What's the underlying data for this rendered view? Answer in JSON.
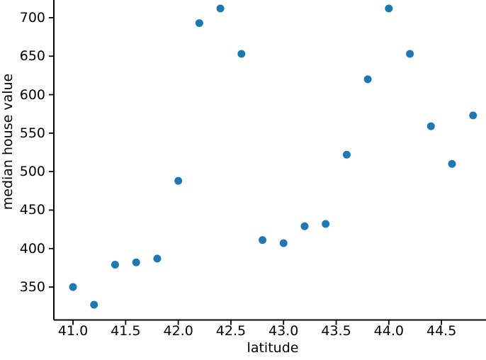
{
  "chart_data": {
    "type": "scatter",
    "xlabel": "latitude",
    "ylabel": "median house value",
    "x": [
      41.0,
      41.2,
      41.4,
      41.6,
      41.8,
      42.0,
      42.2,
      42.4,
      42.6,
      42.8,
      43.0,
      43.2,
      43.4,
      43.6,
      43.8,
      44.0,
      44.2,
      44.4,
      44.6,
      44.8
    ],
    "y": [
      350,
      327,
      379,
      382,
      387,
      488,
      693,
      712,
      653,
      411,
      407,
      429,
      432,
      522,
      620,
      712,
      653,
      559,
      510,
      573
    ],
    "x_tick_labels": [
      "41.0",
      "41.5",
      "42.0",
      "42.5",
      "43.0",
      "43.5",
      "44.0",
      "44.5"
    ],
    "x_tick_values": [
      41.0,
      41.5,
      42.0,
      42.5,
      43.0,
      43.5,
      44.0,
      44.5
    ],
    "y_tick_labels": [
      "350",
      "400",
      "450",
      "500",
      "550",
      "600",
      "650",
      "700"
    ],
    "y_tick_values": [
      350,
      400,
      450,
      500,
      550,
      600,
      650,
      700
    ],
    "xlim": [
      40.818,
      44.923
    ],
    "ylim": [
      307.2,
      723.0
    ],
    "grid": false,
    "legend": null,
    "marker_color": "#1f77b4",
    "axis_color": "#000000",
    "background_color": "#ffffff"
  }
}
